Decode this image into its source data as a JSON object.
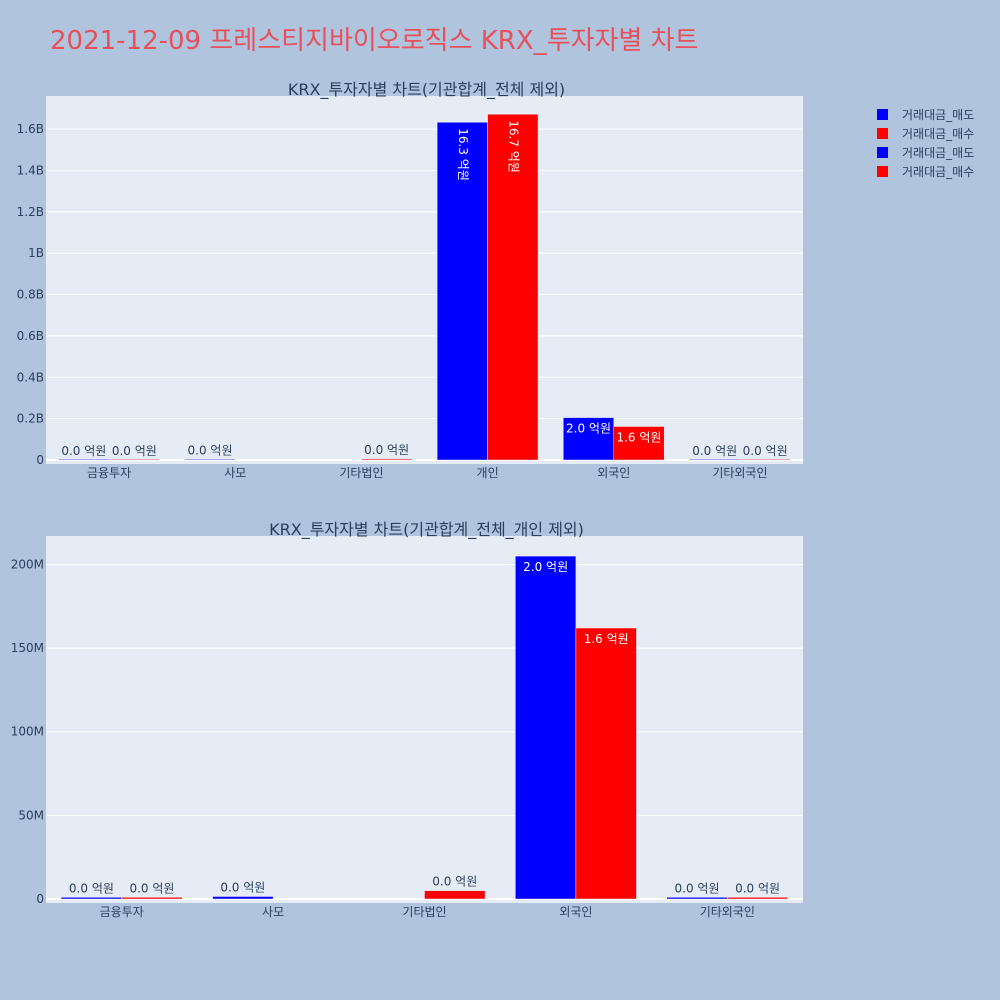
{
  "title": "2021-12-09 프레스티지바이오로직스 KRX_투자자별 차트",
  "colors": {
    "page_bg": "#b0c4de",
    "plot_bg": "#e5ecf6",
    "title": "#e8505b",
    "sell": "#0000ff",
    "buy": "#ff0000",
    "text": "#2a3f5f"
  },
  "legend": [
    {
      "label": "거래대금_매도",
      "color": "#0000ff"
    },
    {
      "label": "거래대금_매수",
      "color": "#ff0000"
    },
    {
      "label": "거래대금_매도",
      "color": "#0000ff"
    },
    {
      "label": "거래대금_매수",
      "color": "#ff0000"
    }
  ],
  "chart_data": [
    {
      "type": "bar",
      "title": "KRX_투자자별 차트(기관합계_전체 제외)",
      "categories": [
        "금융투자",
        "사모",
        "기타법인",
        "개인",
        "외국인",
        "기타외국인"
      ],
      "ylim": [
        0,
        1760000000
      ],
      "yticks": [
        {
          "value": 0,
          "label": "0"
        },
        {
          "value": 200000000,
          "label": "0.2B"
        },
        {
          "value": 400000000,
          "label": "0.4B"
        },
        {
          "value": 600000000,
          "label": "0.6B"
        },
        {
          "value": 800000000,
          "label": "0.8B"
        },
        {
          "value": 1000000000,
          "label": "1B"
        },
        {
          "value": 1200000000,
          "label": "1.2B"
        },
        {
          "value": 1400000000,
          "label": "1.4B"
        },
        {
          "value": 1600000000,
          "label": "1.6B"
        }
      ],
      "series": [
        {
          "name": "거래대금_매도",
          "color": "#0000ff",
          "values": [
            1000000,
            1500000,
            null,
            1633000000,
            205000000,
            1000000
          ],
          "labels": [
            "0.0 억원",
            "0.0 억원",
            "",
            "16.3 억원",
            "2.0 억원",
            "0.0 억원"
          ]
        },
        {
          "name": "거래대금_매수",
          "color": "#ff0000",
          "values": [
            1000000,
            null,
            5000000,
            1672000000,
            162000000,
            1000000
          ],
          "labels": [
            "0.0 억원",
            "",
            "0.0 억원",
            "16.7 억원",
            "1.6 억원",
            "0.0 억원"
          ]
        }
      ]
    },
    {
      "type": "bar",
      "title": "KRX_투자자별 차트(기관합계_전체_개인 제외)",
      "categories": [
        "금융투자",
        "사모",
        "기타법인",
        "외국인",
        "기타외국인"
      ],
      "ylim": [
        0,
        217000000
      ],
      "yticks": [
        {
          "value": 0,
          "label": "0"
        },
        {
          "value": 50000000,
          "label": "50M"
        },
        {
          "value": 100000000,
          "label": "100M"
        },
        {
          "value": 150000000,
          "label": "150M"
        },
        {
          "value": 200000000,
          "label": "200M"
        }
      ],
      "series": [
        {
          "name": "거래대금_매도",
          "color": "#0000ff",
          "values": [
            1000000,
            1500000,
            null,
            205000000,
            1000000
          ],
          "labels": [
            "0.0 억원",
            "0.0 억원",
            "",
            "2.0 억원",
            "0.0 억원"
          ]
        },
        {
          "name": "거래대금_매수",
          "color": "#ff0000",
          "values": [
            1000000,
            null,
            5000000,
            162000000,
            1000000
          ],
          "labels": [
            "0.0 억원",
            "",
            "0.0 억원",
            "1.6 억원",
            "0.0 억원"
          ]
        }
      ]
    }
  ]
}
